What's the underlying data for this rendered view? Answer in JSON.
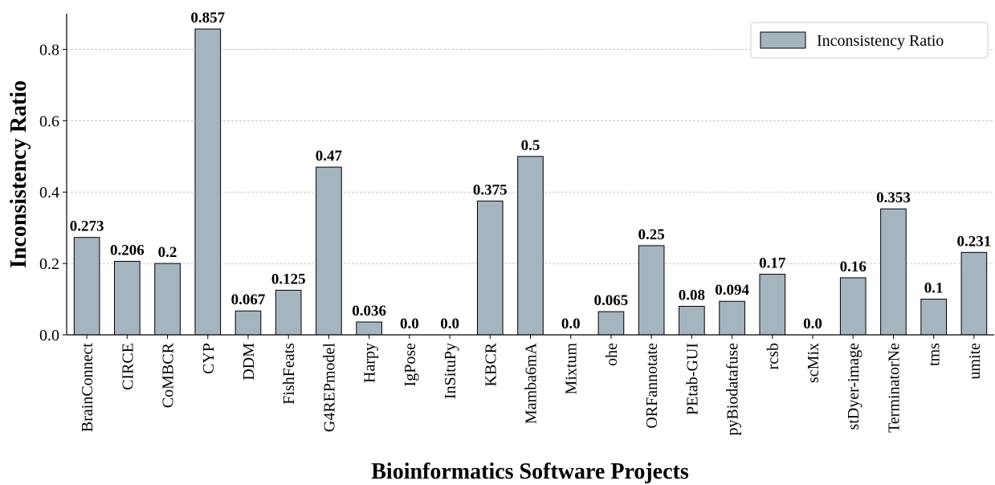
{
  "chart_data": {
    "type": "bar",
    "x_label": "Bioinformatics Software Projects",
    "y_label": "Inconsistency Ratio",
    "categories": [
      "BrainConnect",
      "CIRCE",
      "CoMBCR",
      "CYP",
      "DDM",
      "FishFeats",
      "G4REPmodel",
      "Harpy",
      "IgPose",
      "InSituPy",
      "KBCR",
      "Mamba6mA",
      "Mixtum",
      "ohe",
      "ORFannotate",
      "PEtab-GUI",
      "pyBiodatafuse",
      "rcsb",
      "scMix",
      "stDyer-image",
      "TerminatorNe",
      "tms",
      "umite"
    ],
    "series": [
      {
        "name": "Inconsistency Ratio",
        "color": "#a5b5c0",
        "values": [
          0.273,
          0.206,
          0.2,
          0.857,
          0.067,
          0.125,
          0.47,
          0.036,
          0,
          0,
          0.375,
          0.5,
          0,
          0.065,
          0.25,
          0.08,
          0.094,
          0.17,
          0,
          0.16,
          0.353,
          0.1,
          0.231
        ],
        "value_labels": [
          "0.273",
          "0.206",
          "0.2",
          "0.857",
          "0.067",
          "0.125",
          "0.47",
          "0.036",
          "0.0",
          "0.0",
          "0.375",
          "0.5",
          "0.0",
          "0.065",
          "0.25",
          "0.08",
          "0.094",
          "0.17",
          "0.0",
          "0.16",
          "0.353",
          "0.1",
          "0.231"
        ]
      }
    ],
    "ylim": [
      0,
      0.9
    ],
    "yticks": [
      {
        "value": 0,
        "label": "0.0"
      },
      0.2,
      0.4,
      0.6,
      0.8
    ],
    "grid": true,
    "legend": "upper right"
  }
}
